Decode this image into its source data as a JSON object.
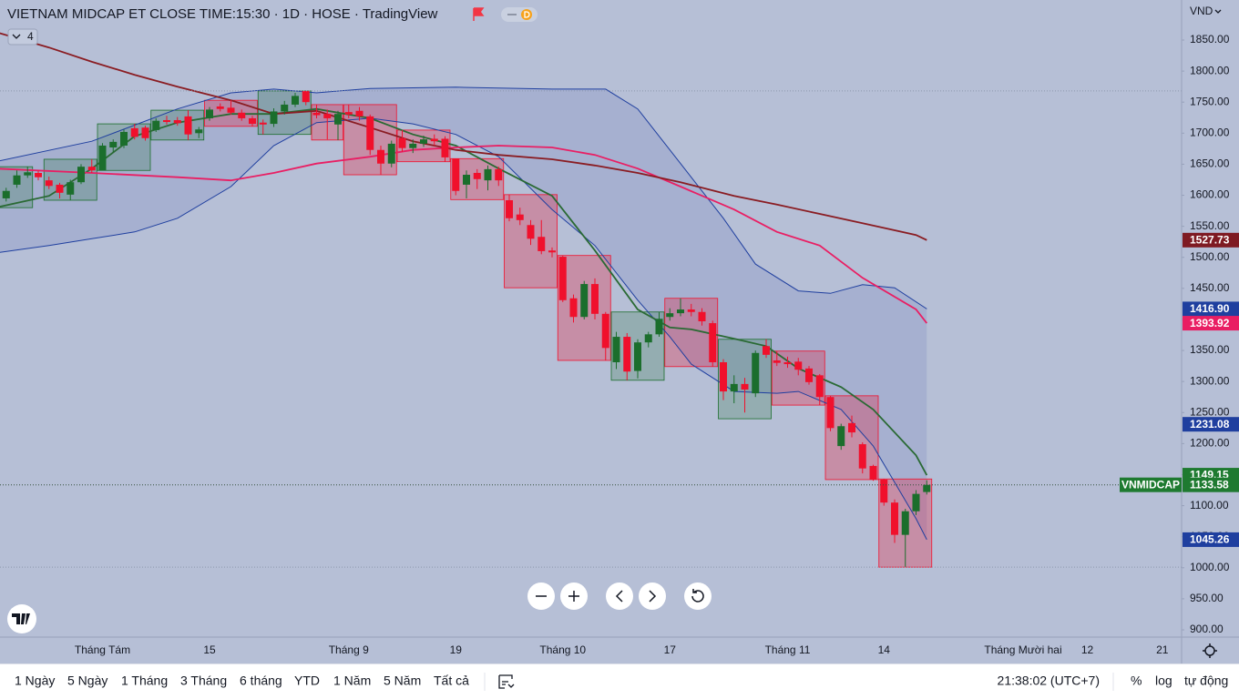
{
  "chart_data": {
    "type": "candlestick",
    "title": "VIETNAM MIDCAP ET CLOSE TIME:15:30 · 1D · HOSE · TradingView",
    "symbol": "VNMIDCAP",
    "currency": "VND",
    "log_scale": false,
    "grid": false,
    "up_color": "#1b6e2c",
    "down_color": "#f0102c",
    "categories": [
      null,
      null,
      null,
      null,
      null,
      null,
      null,
      null,
      null,
      null,
      "Tháng Tám",
      null,
      null,
      null,
      null,
      null,
      null,
      null,
      null,
      null,
      "15",
      null,
      null,
      null,
      null,
      null,
      null,
      null,
      null,
      null,
      null,
      null,
      null,
      "Tháng 9",
      null,
      null,
      null,
      null,
      null,
      null,
      null,
      null,
      null,
      "19",
      null,
      null,
      null,
      null,
      null,
      null,
      null,
      null,
      null,
      "Tháng 10",
      null,
      null,
      null,
      null,
      null,
      null,
      null,
      null,
      null,
      "17",
      null,
      null,
      null,
      null,
      null,
      null,
      null,
      null,
      null,
      null,
      "Tháng 11",
      null,
      null,
      null,
      null,
      null,
      null,
      null,
      null,
      "14",
      null,
      null,
      null,
      null,
      null,
      null,
      null,
      null,
      null,
      null,
      null,
      null,
      "Tháng Mười hai",
      null,
      null,
      null,
      null,
      null,
      "12",
      null,
      null,
      null,
      null,
      null,
      null,
      "21"
    ],
    "open": [
      1600,
      1595,
      1617,
      1632,
      1636,
      1624,
      1617,
      1601,
      1621,
      1646,
      1640,
      1677,
      1680,
      1708,
      1709,
      1705,
      1721,
      1721,
      1727,
      1700,
      1724,
      1743,
      1741,
      1733,
      1724,
      1717,
      1715,
      1735,
      1746,
      1768,
      1733,
      1731,
      1714,
      1734,
      1736,
      1727,
      1673,
      1651,
      1692,
      1676,
      1683,
      1691,
      1691,
      1659,
      1617,
      1636,
      1624,
      1642,
      1592,
      1569,
      1552,
      1533,
      1511,
      1501,
      1434,
      1404,
      1457,
      1409,
      1331,
      1372,
      1317,
      1363,
      1376,
      1404,
      1410,
      1416,
      1412,
      1394,
      1331,
      1284,
      1296,
      1281,
      1357,
      1334,
      1331,
      1332,
      1321,
      1310,
      1275,
      1196,
      1233,
      1199,
      1164,
      1142,
      1105,
      1053,
      1091,
      1122,
      null,
      null,
      null,
      null,
      null,
      null,
      null,
      null,
      null,
      null,
      null,
      null,
      null,
      null,
      null,
      null,
      null,
      null,
      null,
      null,
      null,
      null
    ],
    "high": [
      1616,
      1612,
      1640,
      1646,
      1640,
      1630,
      1620,
      1625,
      1650,
      1658,
      1684,
      1690,
      1706,
      1715,
      1712,
      1724,
      1728,
      1726,
      1737,
      1710,
      1742,
      1748,
      1753,
      1738,
      1728,
      1722,
      1740,
      1752,
      1765,
      1768,
      1746,
      1738,
      1736,
      1746,
      1742,
      1730,
      1680,
      1688,
      1705,
      1690,
      1696,
      1698,
      1695,
      1659,
      1640,
      1642,
      1648,
      1646,
      1601,
      1580,
      1560,
      1560,
      1516,
      1503,
      1440,
      1462,
      1466,
      1412,
      1380,
      1378,
      1368,
      1380,
      1412,
      1418,
      1434,
      1425,
      1418,
      1398,
      1336,
      1310,
      1306,
      1350,
      1368,
      1349,
      1340,
      1338,
      1325,
      1312,
      1277,
      1232,
      1245,
      1202,
      1166,
      1143,
      1110,
      1095,
      1125,
      1141,
      null,
      null,
      null,
      null,
      null,
      null,
      null,
      null,
      null,
      null,
      null,
      null,
      null,
      null,
      null,
      null,
      null,
      null,
      null,
      null,
      null,
      null
    ],
    "low": [
      1580,
      1590,
      1612,
      1628,
      1624,
      1610,
      1595,
      1592,
      1618,
      1636,
      1640,
      1670,
      1676,
      1690,
      1688,
      1702,
      1714,
      1712,
      1689,
      1692,
      1720,
      1735,
      1730,
      1720,
      1711,
      1698,
      1710,
      1730,
      1742,
      1745,
      1724,
      1690,
      1689,
      1724,
      1720,
      1665,
      1633,
      1645,
      1670,
      1668,
      1678,
      1680,
      1654,
      1600,
      1595,
      1610,
      1608,
      1615,
      1558,
      1552,
      1520,
      1505,
      1500,
      1428,
      1395,
      1400,
      1400,
      1334,
      1320,
      1302,
      1305,
      1355,
      1372,
      1398,
      1405,
      1405,
      1390,
      1324,
      1270,
      1265,
      1250,
      1275,
      1338,
      1325,
      1322,
      1310,
      1295,
      1262,
      1220,
      1190,
      1210,
      1152,
      1140,
      1100,
      1040,
      1001,
      1085,
      1118,
      null,
      null,
      null,
      null,
      null,
      null,
      null,
      null,
      null,
      null,
      null,
      null,
      null,
      null,
      null,
      null,
      null,
      null,
      null,
      null,
      null,
      null
    ],
    "close": [
      1610,
      1607,
      1632,
      1637,
      1629,
      1615,
      1604,
      1621,
      1646,
      1640,
      1680,
      1686,
      1702,
      1694,
      1692,
      1720,
      1718,
      1716,
      1698,
      1706,
      1738,
      1739,
      1733,
      1724,
      1715,
      1714,
      1735,
      1746,
      1760,
      1750,
      1729,
      1724,
      1731,
      1730,
      1727,
      1673,
      1651,
      1683,
      1676,
      1683,
      1690,
      1687,
      1661,
      1607,
      1633,
      1626,
      1642,
      1624,
      1563,
      1560,
      1530,
      1510,
      1508,
      1431,
      1404,
      1457,
      1409,
      1354,
      1372,
      1316,
      1363,
      1376,
      1401,
      1410,
      1416,
      1412,
      1397,
      1331,
      1284,
      1296,
      1287,
      1346,
      1343,
      1330,
      1328,
      1319,
      1299,
      1275,
      1225,
      1228,
      1218,
      1160,
      1142,
      1105,
      1053,
      1091,
      1119,
      1133.58,
      null,
      null,
      null,
      null,
      null,
      null,
      null,
      null,
      null,
      null,
      null,
      null,
      null,
      null,
      null,
      null,
      null,
      null,
      null,
      null,
      null,
      null
    ],
    "boxes": [
      {
        "start": 0,
        "end": 3,
        "high": 1646,
        "low": 1580
      },
      {
        "start": 5,
        "end": 9,
        "high": 1658,
        "low": 1592
      },
      {
        "start": 10,
        "end": 14,
        "high": 1715,
        "low": 1640
      },
      {
        "start": 15,
        "end": 19,
        "high": 1737,
        "low": 1689
      },
      {
        "start": 20,
        "end": 24,
        "high": 1753,
        "low": 1711
      },
      {
        "start": 25,
        "end": 29,
        "high": 1768,
        "low": 1698
      },
      {
        "start": 30,
        "end": 32,
        "high": 1746,
        "low": 1689
      },
      {
        "start": 33,
        "end": 37,
        "high": 1746,
        "low": 1633
      },
      {
        "start": 38,
        "end": 42,
        "high": 1705,
        "low": 1654
      },
      {
        "start": 43,
        "end": 47,
        "high": 1659,
        "low": 1593
      },
      {
        "start": 48,
        "end": 52,
        "high": 1601,
        "low": 1451
      },
      {
        "start": 53,
        "end": 57,
        "high": 1503,
        "low": 1334
      },
      {
        "start": 58,
        "end": 62,
        "high": 1412,
        "low": 1302
      },
      {
        "start": 63,
        "end": 67,
        "high": 1434,
        "low": 1324
      },
      {
        "start": 68,
        "end": 72,
        "high": 1368,
        "low": 1240
      },
      {
        "start": 73,
        "end": 77,
        "high": 1349,
        "low": 1262
      },
      {
        "start": 78,
        "end": 82,
        "high": 1277,
        "low": 1142
      },
      {
        "start": 83,
        "end": 87,
        "high": 1143,
        "low": 1001
      }
    ],
    "bollinger": {
      "color": "#1f3f9f",
      "fill": "rgba(60,80,170,0.13)",
      "upper": {
        "x": [
          0,
          9,
          17,
          22,
          26,
          30,
          35,
          43,
          52,
          57,
          60,
          64,
          68,
          71,
          75,
          78,
          81,
          84,
          87
        ],
        "values": [
          1654,
          1687,
          1739,
          1765,
          1771,
          1765,
          1772,
          1774,
          1771,
          1771,
          1739,
          1651,
          1563,
          1489,
          1446,
          1442,
          1456,
          1451,
          1416.9
        ]
      },
      "lower": {
        "x": [
          0,
          5,
          9,
          13,
          17,
          22,
          26,
          30,
          35,
          39,
          43,
          47,
          52,
          56,
          60,
          63,
          65,
          69,
          73,
          75,
          79,
          82,
          86,
          87
        ],
        "values": [
          1507,
          1519,
          1530,
          1541,
          1563,
          1614,
          1680,
          1717,
          1724,
          1715,
          1698,
          1662,
          1577,
          1519,
          1431,
          1372,
          1328,
          1284,
          1281,
          1284,
          1255,
          1196,
          1079,
          1045.26
        ]
      }
    },
    "moving_averages": [
      {
        "color": "#2a6a34",
        "x": [
          0,
          5,
          9,
          13,
          17,
          22,
          26,
          30,
          35,
          39,
          43,
          47,
          52,
          56,
          60,
          63,
          65,
          69,
          72,
          75,
          79,
          82,
          86,
          87
        ],
        "values": [
          1580,
          1599,
          1643,
          1695,
          1717,
          1731,
          1731,
          1739,
          1724,
          1698,
          1680,
          1643,
          1599,
          1511,
          1416,
          1387,
          1384,
          1369,
          1357,
          1321,
          1291,
          1255,
          1181,
          1149.15
        ]
      },
      {
        "color": "#e91e63",
        "x": [
          0,
          9,
          17,
          22,
          26,
          30,
          35,
          39,
          43,
          47,
          52,
          56,
          60,
          64,
          69,
          73,
          77,
          81,
          86,
          87
        ],
        "values": [
          1643,
          1636,
          1629,
          1624,
          1636,
          1651,
          1662,
          1673,
          1677,
          1680,
          1677,
          1665,
          1643,
          1614,
          1577,
          1541,
          1519,
          1467,
          1416,
          1393.92
        ]
      },
      {
        "color": "#8a1c22",
        "x": [
          0,
          5,
          9,
          13,
          17,
          22,
          26,
          30,
          35,
          39,
          43,
          47,
          52,
          56,
          60,
          64,
          69,
          73,
          77,
          81,
          86,
          87
        ],
        "values": [
          1863,
          1838,
          1815,
          1794,
          1775,
          1753,
          1731,
          1736,
          1709,
          1687,
          1673,
          1665,
          1658,
          1648,
          1636,
          1621,
          1599,
          1585,
          1570,
          1555,
          1536,
          1527.73
        ]
      }
    ],
    "price_labels": [
      {
        "value": 1527.73,
        "color": "#7e1a22"
      },
      {
        "value": 1416.9,
        "label": "1416.90",
        "color": "#1f3f9f"
      },
      {
        "value": 1393.92,
        "color": "#e91e63"
      },
      {
        "value": 1231.08,
        "color": "#1f3f9f"
      },
      {
        "value": 1149.15,
        "color": "#1e7a30"
      },
      {
        "value": 1133.58,
        "color": "#1e7a30"
      },
      {
        "value": 1045.26,
        "color": "#1f3f9f"
      }
    ],
    "ylim": [
      888.3,
      1914.5
    ],
    "yticks": [
      {
        "value": 900,
        "label": "900.00"
      },
      {
        "value": 950,
        "label": "950.00"
      },
      {
        "value": 1000,
        "label": "1000.00"
      },
      {
        "value": 1050,
        "label": "1050.00"
      },
      {
        "value": 1100,
        "label": "1100.00"
      },
      {
        "value": 1150,
        "label": "1150.00"
      },
      {
        "value": 1200,
        "label": "1200.00"
      },
      {
        "value": 1250,
        "label": "1250.00"
      },
      {
        "value": 1300,
        "label": "1300.00"
      },
      {
        "value": 1350,
        "label": "1350.00"
      },
      {
        "value": 1400,
        "label": "1400.00"
      },
      {
        "value": 1450,
        "label": "1450.00"
      },
      {
        "value": 1500,
        "label": "1500.00"
      },
      {
        "value": 1550,
        "label": "1550.00"
      },
      {
        "value": 1600,
        "label": "1600.00"
      },
      {
        "value": 1650,
        "label": "1650.00"
      },
      {
        "value": 1700,
        "label": "1700.00"
      },
      {
        "value": 1750,
        "label": "1750.00"
      },
      {
        "value": 1800,
        "label": "1800.00"
      },
      {
        "value": 1850,
        "label": "1850.00"
      }
    ]
  },
  "ui": {
    "indicator_count": 4,
    "ranges": [
      "1 Ngày",
      "5 Ngày",
      "1 Tháng",
      "3 Tháng",
      "6 tháng",
      "YTD",
      "1 Năm",
      "5 Năm",
      "Tất cả"
    ],
    "clock": "21:38:02 (UTC+7)",
    "percent": "%",
    "log": "log",
    "auto": "tự động"
  }
}
